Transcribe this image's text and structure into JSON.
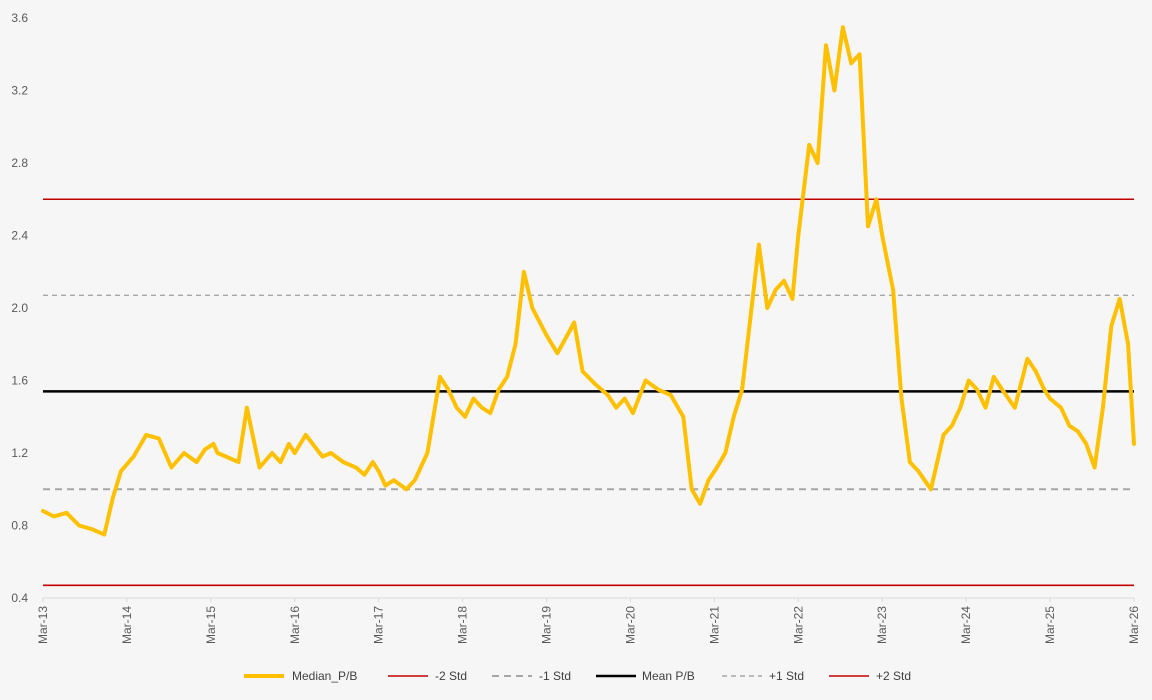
{
  "chart_data": {
    "type": "line",
    "title": "",
    "xlabel": "",
    "ylabel": "",
    "ylim": [
      0.4,
      3.6
    ],
    "y_ticks": [
      "0.4",
      "0.8",
      "1.2",
      "1.6",
      "2.0",
      "2.4",
      "2.8",
      "3.2",
      "3.6"
    ],
    "x_tick_labels": [
      "Mar-13",
      "Mar-14",
      "Mar-15",
      "Mar-16",
      "Mar-17",
      "Mar-18",
      "Mar-19",
      "Mar-20",
      "Mar-21",
      "Mar-22",
      "Mar-23",
      "Mar-24",
      "Mar-25",
      "Mar-26"
    ],
    "x_range": [
      "Mar-13",
      "Mar-26"
    ],
    "grid": false,
    "legend_position": "bottom",
    "series": [
      {
        "name": "Median_P/B",
        "color": "#ffc000",
        "style": "solid-thick",
        "x": [
          2013.17,
          2013.3,
          2013.45,
          2013.6,
          2013.75,
          2013.9,
          2014.0,
          2014.1,
          2014.25,
          2014.4,
          2014.55,
          2014.7,
          2014.85,
          2015.0,
          2015.1,
          2015.2,
          2015.25,
          2015.35,
          2015.5,
          2015.6,
          2015.75,
          2015.9,
          2016.0,
          2016.1,
          2016.17,
          2016.3,
          2016.5,
          2016.6,
          2016.75,
          2016.9,
          2017.0,
          2017.1,
          2017.17,
          2017.25,
          2017.35,
          2017.5,
          2017.6,
          2017.75,
          2017.9,
          2018.0,
          2018.1,
          2018.2,
          2018.3,
          2018.4,
          2018.5,
          2018.6,
          2018.7,
          2018.8,
          2018.9,
          2019.0,
          2019.17,
          2019.3,
          2019.5,
          2019.6,
          2019.75,
          2019.9,
          2020.0,
          2020.1,
          2020.2,
          2020.35,
          2020.5,
          2020.65,
          2020.8,
          2020.9,
          2021.0,
          2021.1,
          2021.2,
          2021.3,
          2021.4,
          2021.5,
          2021.6,
          2021.7,
          2021.8,
          2021.9,
          2022.0,
          2022.1,
          2022.17,
          2022.3,
          2022.4,
          2022.5,
          2022.6,
          2022.7,
          2022.8,
          2022.9,
          2023.0,
          2023.1,
          2023.17,
          2023.3,
          2023.4,
          2023.5,
          2023.6,
          2023.75,
          2023.9,
          2024.0,
          2024.1,
          2024.2,
          2024.3,
          2024.4,
          2024.5,
          2024.6,
          2024.75,
          2024.9,
          2025.0,
          2025.1,
          2025.17,
          2025.3,
          2025.4,
          2025.5,
          2025.6,
          2025.7,
          2025.8,
          2025.9,
          2026.0,
          2026.1,
          2026.17
        ],
        "y": [
          0.88,
          0.85,
          0.87,
          0.8,
          0.78,
          0.75,
          0.95,
          1.1,
          1.18,
          1.3,
          1.28,
          1.12,
          1.2,
          1.15,
          1.22,
          1.25,
          1.2,
          1.18,
          1.15,
          1.45,
          1.12,
          1.2,
          1.15,
          1.25,
          1.2,
          1.3,
          1.18,
          1.2,
          1.15,
          1.12,
          1.08,
          1.15,
          1.1,
          1.02,
          1.05,
          1.0,
          1.05,
          1.2,
          1.62,
          1.55,
          1.45,
          1.4,
          1.5,
          1.45,
          1.42,
          1.55,
          1.62,
          1.8,
          2.2,
          2.0,
          1.85,
          1.75,
          1.92,
          1.65,
          1.58,
          1.52,
          1.45,
          1.5,
          1.42,
          1.6,
          1.55,
          1.52,
          1.4,
          1.0,
          0.92,
          1.05,
          1.12,
          1.2,
          1.4,
          1.55,
          1.95,
          2.35,
          2.0,
          2.1,
          2.15,
          2.05,
          2.4,
          2.9,
          2.8,
          3.45,
          3.2,
          3.55,
          3.35,
          3.4,
          2.45,
          2.6,
          2.4,
          2.1,
          1.5,
          1.15,
          1.1,
          1.0,
          1.3,
          1.35,
          1.45,
          1.6,
          1.55,
          1.45,
          1.62,
          1.55,
          1.45,
          1.72,
          1.65,
          1.55,
          1.5,
          1.45,
          1.35,
          1.32,
          1.25,
          1.12,
          1.45,
          1.9,
          2.05,
          1.8,
          1.25
        ]
      },
      {
        "name": "-2 Std",
        "color": "#c00000",
        "style": "solid",
        "value": 0.47
      },
      {
        "name": "-1 Std",
        "color": "#a6a6a6",
        "style": "dashed",
        "value": 1.0
      },
      {
        "name": "Mean P/B",
        "color": "#000000",
        "style": "solid",
        "value": 1.54
      },
      {
        "name": "+1 Std",
        "color": "#a6a6a6",
        "style": "dashed-thin",
        "value": 2.07
      },
      {
        "name": "+2 Std",
        "color": "#c00000",
        "style": "solid",
        "value": 2.6
      }
    ]
  }
}
